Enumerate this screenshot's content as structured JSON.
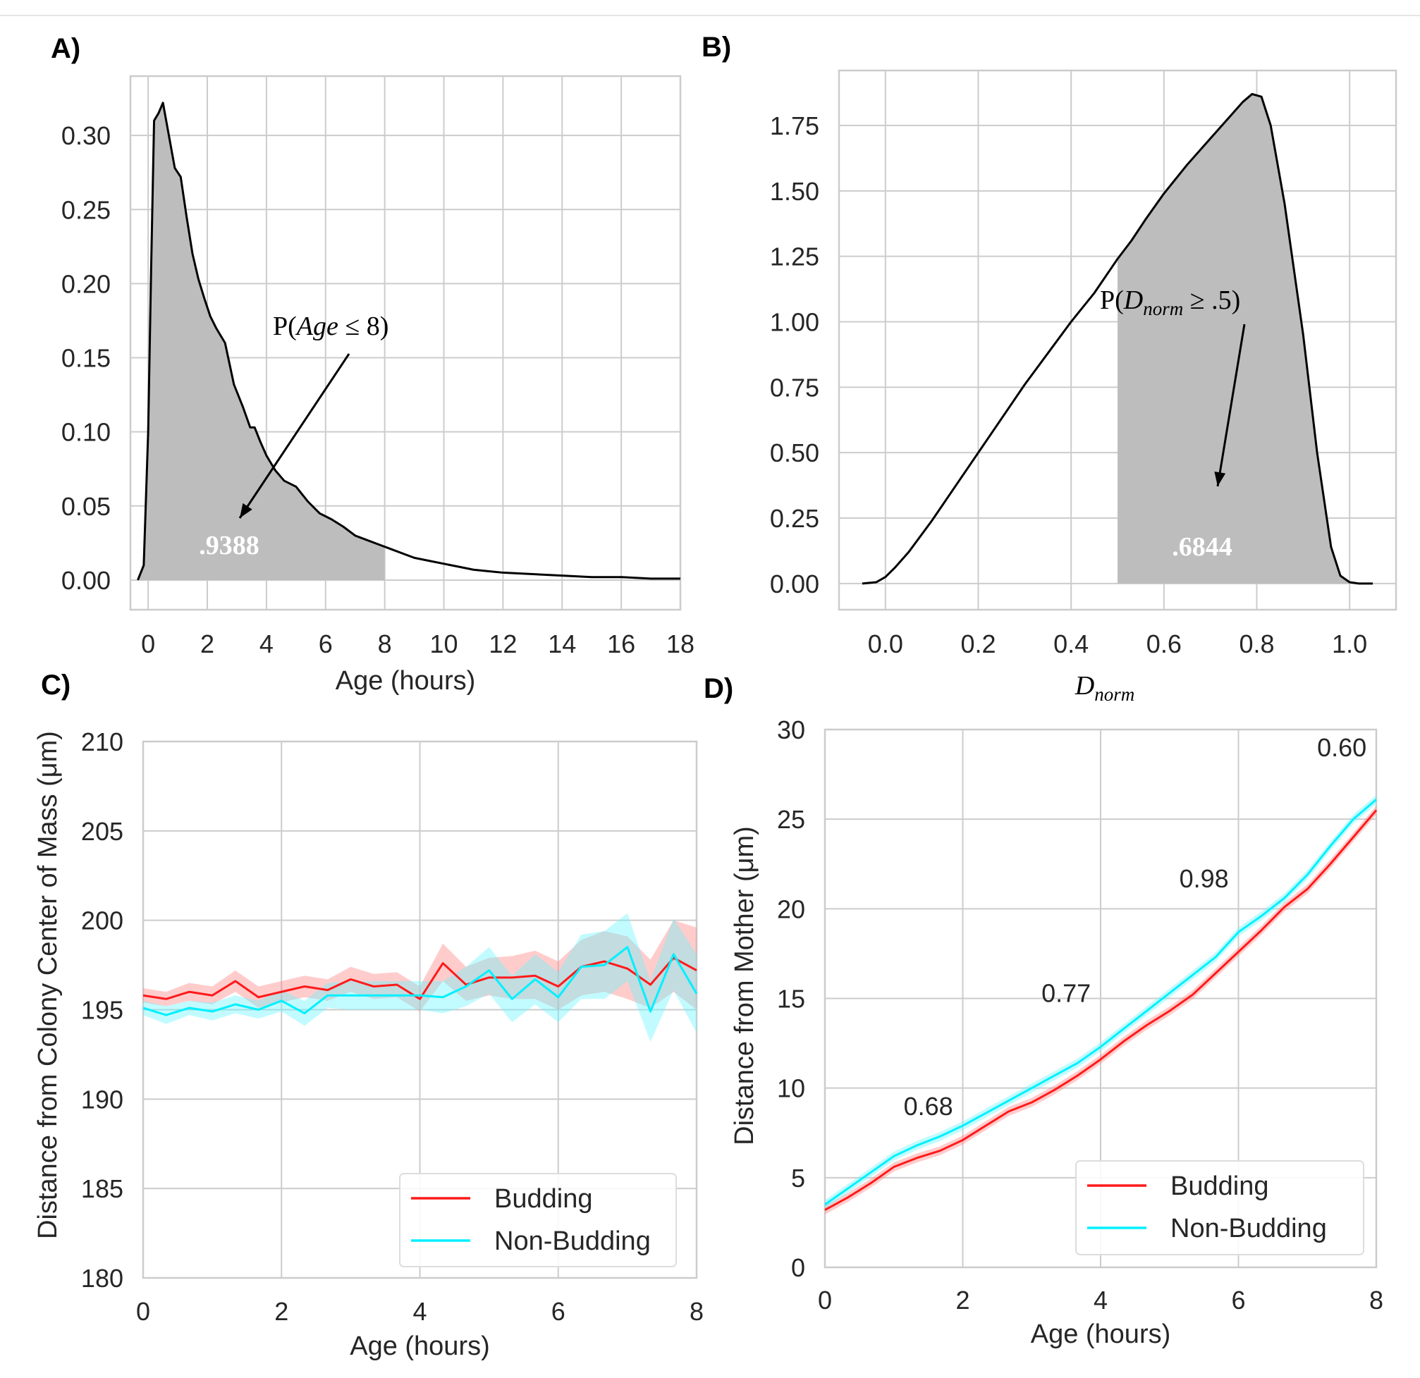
{
  "colors": {
    "background": "#ffffff",
    "grid": "#cccccc",
    "frame": "#cccccc",
    "text": "#262626",
    "line": "#000000",
    "fill_gray": "#bdbdbd",
    "shade_text": "#ffffff",
    "red": "#ff1a1a",
    "red_band": "#ff8080",
    "cyan": "#00f0ff",
    "cyan_band": "#66f4ff",
    "page_top_rule": "#e6e6e6"
  },
  "chart_data": [
    {
      "panel_label": "A)",
      "type": "area",
      "title": "",
      "xlabel": "Age (hours)",
      "ylabel": "",
      "xlim": [
        -0.6,
        18
      ],
      "ylim": [
        -0.02,
        0.34
      ],
      "xticks": [
        0,
        2,
        4,
        6,
        8,
        10,
        12,
        14,
        16,
        18
      ],
      "yticks": [
        0.0,
        0.05,
        0.1,
        0.15,
        0.2,
        0.25,
        0.3
      ],
      "xtick_labels": [
        "0",
        "2",
        "4",
        "6",
        "8",
        "10",
        "12",
        "14",
        "16",
        "18"
      ],
      "ytick_labels": [
        "0.00",
        "0.05",
        "0.10",
        "0.15",
        "0.20",
        "0.25",
        "0.30"
      ],
      "grid": true,
      "series": [
        {
          "name": "density",
          "x": [
            -0.35,
            -0.15,
            0.0,
            0.1,
            0.2,
            0.35,
            0.5,
            0.7,
            0.9,
            1.1,
            1.3,
            1.5,
            1.7,
            1.9,
            2.1,
            2.3,
            2.6,
            2.9,
            3.2,
            3.45,
            3.6,
            3.8,
            4.0,
            4.3,
            4.6,
            5.0,
            5.4,
            5.8,
            6.2,
            6.6,
            7.0,
            7.4,
            7.8,
            8.2,
            8.6,
            9.0,
            9.5,
            10.0,
            10.5,
            11.0,
            11.5,
            12.0,
            13.0,
            14.0,
            15.0,
            16.0,
            17.0,
            18.0
          ],
          "y": [
            0.0,
            0.01,
            0.1,
            0.21,
            0.31,
            0.315,
            0.322,
            0.3,
            0.278,
            0.272,
            0.245,
            0.22,
            0.203,
            0.19,
            0.178,
            0.17,
            0.16,
            0.132,
            0.117,
            0.103,
            0.103,
            0.093,
            0.084,
            0.074,
            0.067,
            0.063,
            0.053,
            0.045,
            0.041,
            0.036,
            0.03,
            0.027,
            0.024,
            0.021,
            0.018,
            0.015,
            0.013,
            0.011,
            0.009,
            0.007,
            0.006,
            0.005,
            0.004,
            0.003,
            0.002,
            0.002,
            0.001,
            0.001
          ]
        }
      ],
      "shade_range": [
        -0.35,
        8
      ],
      "shaded_value_label": ".9388",
      "annotation": {
        "prefix": "P(",
        "var": "Age",
        "op": " ≤ 8)",
        "text_x": 4.0,
        "text_y": 0.163,
        "arrow_from": [
          2.55,
          0.155
        ],
        "arrow_to": [
          -1.15,
          0.047
        ]
      }
    },
    {
      "panel_label": "B)",
      "type": "area",
      "title": "",
      "xlabel_main": "D",
      "xlabel_sub": "norm",
      "ylabel": "",
      "xlim": [
        -0.1,
        1.1
      ],
      "ylim": [
        -0.1,
        1.96
      ],
      "xticks": [
        0.0,
        0.2,
        0.4,
        0.6,
        0.8,
        1.0
      ],
      "yticks": [
        0.0,
        0.25,
        0.5,
        0.75,
        1.0,
        1.25,
        1.5,
        1.75
      ],
      "xtick_labels": [
        "0.0",
        "0.2",
        "0.4",
        "0.6",
        "0.8",
        "1.0"
      ],
      "ytick_labels": [
        "0.00",
        "0.25",
        "0.50",
        "0.75",
        "1.00",
        "1.25",
        "1.50",
        "1.75"
      ],
      "grid": true,
      "series": [
        {
          "name": "density",
          "x": [
            -0.05,
            -0.02,
            0.0,
            0.02,
            0.05,
            0.1,
            0.15,
            0.2,
            0.25,
            0.3,
            0.35,
            0.4,
            0.45,
            0.5,
            0.53,
            0.56,
            0.6,
            0.65,
            0.7,
            0.74,
            0.77,
            0.79,
            0.81,
            0.83,
            0.86,
            0.9,
            0.93,
            0.96,
            0.98,
            1.0,
            1.02,
            1.05
          ],
          "y": [
            0.0,
            0.005,
            0.025,
            0.06,
            0.12,
            0.24,
            0.37,
            0.5,
            0.63,
            0.76,
            0.88,
            1.0,
            1.11,
            1.24,
            1.31,
            1.39,
            1.49,
            1.6,
            1.7,
            1.78,
            1.84,
            1.87,
            1.86,
            1.75,
            1.45,
            0.95,
            0.5,
            0.14,
            0.03,
            0.005,
            0.0,
            0.0
          ]
        }
      ],
      "shade_range": [
        0.5,
        1.05
      ],
      "shaded_value_label": ".6844",
      "annotation": {
        "prefix": "P(",
        "var_main": "D",
        "var_sub": "norm",
        "op": " ≥  .5)",
        "text_x": 0.5,
        "text_y": 1.07,
        "arrow_from": [
          0.78,
          1.0
        ],
        "arrow_to": [
          0.72,
          0.38
        ]
      }
    },
    {
      "panel_label": "C)",
      "type": "line",
      "title": "",
      "xlabel": "Age (hours)",
      "ylabel": "Distance from Colony Center of Mass (μm)",
      "xlim": [
        0,
        8
      ],
      "ylim": [
        180,
        210
      ],
      "xticks": [
        0,
        2,
        4,
        6,
        8
      ],
      "yticks": [
        180,
        185,
        190,
        195,
        200,
        205,
        210
      ],
      "xtick_labels": [
        "0",
        "2",
        "4",
        "6",
        "8"
      ],
      "ytick_labels": [
        "180",
        "185",
        "190",
        "195",
        "200",
        "205",
        "210"
      ],
      "grid": true,
      "legend": {
        "position": "lower right",
        "labels": [
          "Budding",
          "Non-Budding"
        ]
      },
      "x": [
        0,
        0.333,
        0.667,
        1,
        1.333,
        1.667,
        2,
        2.333,
        2.667,
        3,
        3.333,
        3.667,
        4,
        4.333,
        4.667,
        5,
        5.333,
        5.667,
        6,
        6.333,
        6.667,
        7,
        7.333,
        7.667,
        8
      ],
      "series": [
        {
          "name": "Budding",
          "values": [
            195.8,
            195.6,
            196.0,
            195.8,
            196.6,
            195.7,
            196.0,
            196.3,
            196.1,
            196.7,
            196.3,
            196.4,
            195.6,
            197.6,
            196.4,
            196.8,
            196.8,
            196.9,
            196.3,
            197.4,
            197.7,
            197.3,
            196.4,
            197.9,
            197.2
          ],
          "lower": [
            195.4,
            195.2,
            195.5,
            195.3,
            196.0,
            195.1,
            195.4,
            195.7,
            195.5,
            196.0,
            195.6,
            195.7,
            194.9,
            196.6,
            195.5,
            195.8,
            195.6,
            195.6,
            195.0,
            195.8,
            196.0,
            195.6,
            195.1,
            196.0,
            195.0
          ],
          "upper": [
            196.2,
            196.0,
            196.5,
            196.3,
            197.2,
            196.3,
            196.6,
            196.9,
            196.7,
            197.4,
            197.0,
            197.1,
            196.3,
            198.7,
            197.4,
            197.9,
            198.0,
            198.3,
            197.7,
            198.9,
            199.4,
            199.1,
            197.8,
            200.0,
            199.6
          ]
        },
        {
          "name": "Non-Budding",
          "values": [
            195.1,
            194.7,
            195.1,
            194.9,
            195.3,
            195.0,
            195.5,
            194.8,
            195.8,
            195.8,
            195.8,
            195.8,
            195.8,
            195.7,
            196.3,
            197.2,
            195.6,
            196.7,
            195.7,
            197.4,
            197.5,
            198.5,
            194.9,
            198.1,
            195.9
          ],
          "lower": [
            194.7,
            194.2,
            194.7,
            194.4,
            194.8,
            194.5,
            194.9,
            194.1,
            195.1,
            195.0,
            195.0,
            195.0,
            195.0,
            194.8,
            195.2,
            195.9,
            194.3,
            195.3,
            194.3,
            195.6,
            195.6,
            196.6,
            193.2,
            196.1,
            193.7
          ],
          "upper": [
            195.5,
            195.2,
            195.5,
            195.4,
            195.8,
            195.5,
            196.1,
            195.5,
            196.5,
            196.6,
            196.6,
            196.6,
            196.6,
            196.6,
            197.4,
            198.5,
            196.9,
            198.1,
            197.1,
            199.2,
            199.4,
            200.4,
            196.6,
            200.1,
            198.1
          ]
        }
      ]
    },
    {
      "panel_label": "D)",
      "type": "line",
      "title": "",
      "xlabel": "Age (hours)",
      "ylabel": "Distance from Mother (μm)",
      "xlim": [
        0,
        8
      ],
      "ylim": [
        0,
        30
      ],
      "xticks": [
        0,
        2,
        4,
        6,
        8
      ],
      "yticks": [
        0,
        5,
        10,
        15,
        20,
        25,
        30
      ],
      "xtick_labels": [
        "0",
        "2",
        "4",
        "6",
        "8"
      ],
      "ytick_labels": [
        "0",
        "5",
        "10",
        "15",
        "20",
        "25",
        "30"
      ],
      "grid": true,
      "legend": {
        "position": "lower right",
        "labels": [
          "Budding",
          "Non-Budding"
        ]
      },
      "x": [
        0,
        0.333,
        0.667,
        1,
        1.333,
        1.667,
        2,
        2.333,
        2.667,
        3,
        3.333,
        3.667,
        4,
        4.333,
        4.667,
        5,
        5.333,
        5.667,
        6,
        6.333,
        6.667,
        7,
        7.333,
        7.667,
        8
      ],
      "series": [
        {
          "name": "Budding",
          "values": [
            3.2,
            3.9,
            4.7,
            5.6,
            6.1,
            6.5,
            7.1,
            7.9,
            8.7,
            9.2,
            9.9,
            10.7,
            11.6,
            12.6,
            13.5,
            14.3,
            15.2,
            16.4,
            17.6,
            18.8,
            20.1,
            21.1,
            22.5,
            24.0,
            25.5
          ],
          "band": 0.25
        },
        {
          "name": "Non-Budding",
          "values": [
            3.5,
            4.4,
            5.3,
            6.2,
            6.8,
            7.3,
            7.9,
            8.6,
            9.3,
            10.0,
            10.7,
            11.4,
            12.3,
            13.3,
            14.3,
            15.3,
            16.3,
            17.3,
            18.7,
            19.6,
            20.6,
            21.9,
            23.5,
            25.0,
            26.1
          ],
          "band": 0.25
        }
      ],
      "annotations": [
        {
          "text": "0.68",
          "x": 1.5,
          "y": 8.5
        },
        {
          "text": "0.77",
          "x": 3.5,
          "y": 14.8
        },
        {
          "text": "0.98",
          "x": 5.5,
          "y": 21.2
        },
        {
          "text": "0.60",
          "x": 7.5,
          "y": 28.5
        }
      ]
    }
  ]
}
